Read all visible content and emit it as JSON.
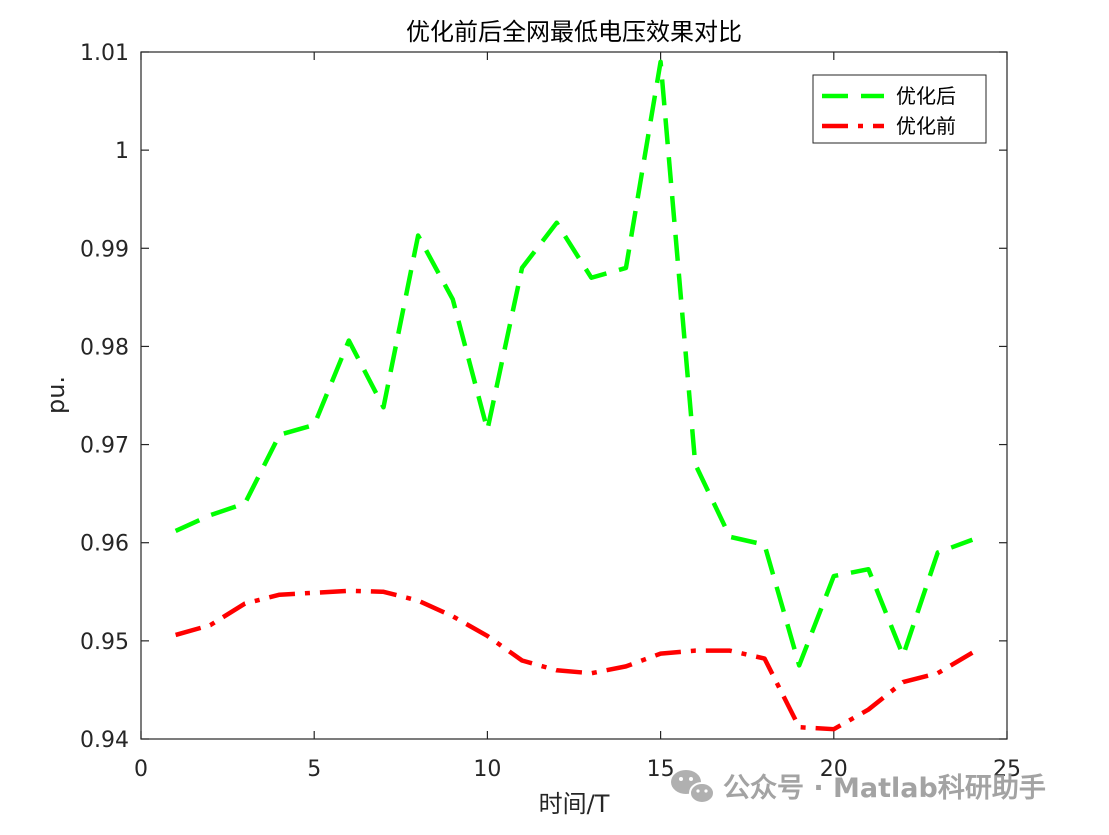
{
  "chart_data": {
    "type": "line",
    "title": "优化前后全网最低电压效果对比",
    "xlabel": "时间/T",
    "ylabel": "pu.",
    "xlim": [
      0,
      25
    ],
    "ylim": [
      0.94,
      1.01
    ],
    "xticks": [
      0,
      5,
      10,
      15,
      20,
      25
    ],
    "yticks": [
      0.94,
      0.95,
      0.96,
      0.97,
      0.98,
      0.99,
      1,
      1.01
    ],
    "xtick_labels": [
      "0",
      "5",
      "10",
      "15",
      "20",
      "25"
    ],
    "ytick_labels": [
      "0.94",
      "0.95",
      "0.96",
      "0.97",
      "0.98",
      "0.99",
      "1",
      "1.01"
    ],
    "grid": false,
    "legend_position": "top-right",
    "x": [
      1,
      2,
      3,
      4,
      5,
      6,
      7,
      8,
      9,
      10,
      11,
      12,
      13,
      14,
      15,
      16,
      17,
      18,
      19,
      20,
      21,
      22,
      23,
      24
    ],
    "series": [
      {
        "name": "优化后",
        "color": "#00ff00",
        "style": "dashed",
        "values": [
          0.9612,
          0.9628,
          0.964,
          0.971,
          0.972,
          0.9806,
          0.9738,
          0.9913,
          0.9848,
          0.9715,
          0.988,
          0.9926,
          0.987,
          0.988,
          1.009,
          0.968,
          0.9606,
          0.9598,
          0.9475,
          0.9566,
          0.9573,
          0.9485,
          0.959,
          0.9603
        ]
      },
      {
        "name": "优化前",
        "color": "#ff0000",
        "style": "dashdot",
        "values": [
          0.9506,
          0.9516,
          0.9538,
          0.9547,
          0.9549,
          0.9551,
          0.955,
          0.9541,
          0.9525,
          0.9505,
          0.948,
          0.947,
          0.9467,
          0.9474,
          0.9487,
          0.949,
          0.949,
          0.9482,
          0.9412,
          0.941,
          0.943,
          0.9458,
          0.9467,
          0.9488
        ]
      }
    ]
  },
  "watermark": {
    "text": "公众号 · Matlab科研助手",
    "icon": "wechat-icon"
  }
}
